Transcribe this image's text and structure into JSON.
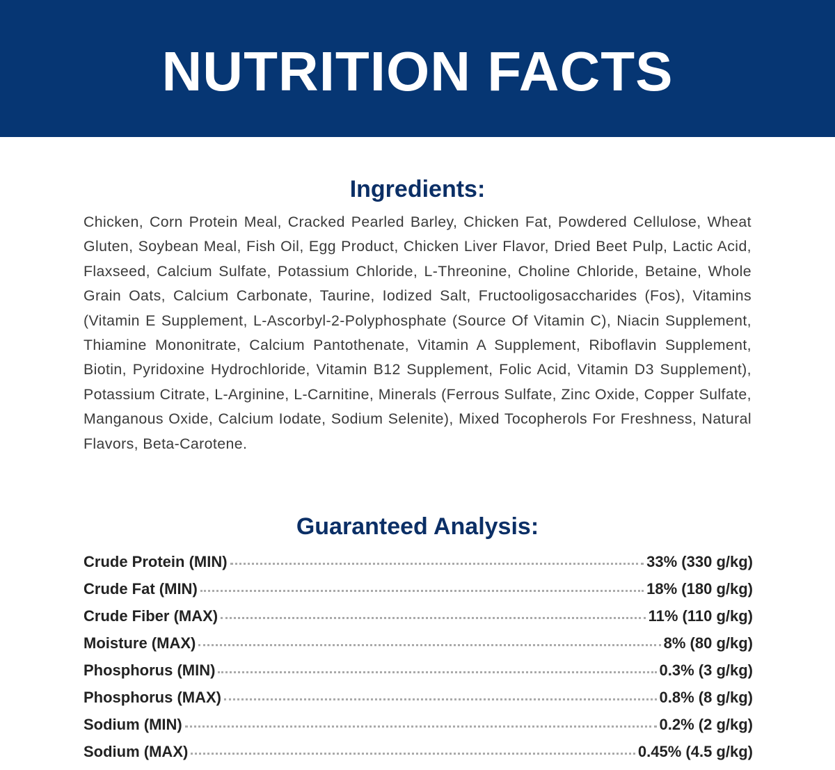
{
  "header": {
    "title": "NUTRITION FACTS"
  },
  "ingredients": {
    "heading": "Ingredients:",
    "text": "Chicken, Corn Protein Meal, Cracked Pearled Barley, Chicken Fat, Powdered Cellulose, Wheat Gluten, Soybean Meal, Fish Oil, Egg Product, Chicken Liver Flavor, Dried Beet Pulp, Lactic Acid, Flaxseed, Calcium Sulfate, Potassium Chloride, L-Threonine, Choline Chloride, Betaine, Whole Grain Oats, Calcium Carbonate, Taurine, Iodized Salt, Fructooligosaccharides (Fos), Vitamins (Vitamin E Supplement, L-Ascorbyl-2-Polyphosphate (Source Of Vitamin C), Niacin Supplement, Thiamine Mononitrate, Calcium Pantothenate, Vitamin A Supplement, Riboflavin Supplement, Biotin, Pyridoxine Hydrochloride, Vitamin B12 Supplement, Folic Acid, Vitamin D3 Supplement), Potassium Citrate, L-Arginine, L-Carnitine, Minerals (Ferrous Sulfate, Zinc Oxide, Copper Sulfate, Manganous Oxide, Calcium Iodate, Sodium Selenite), Mixed Tocopherols For Freshness, Natural Flavors, Beta-Carotene."
  },
  "analysis": {
    "heading": "Guaranteed Analysis:",
    "rows": [
      [
        "Crude Protein (MIN)",
        "33% (330 g/kg)"
      ],
      [
        "Crude Fat (MIN)",
        "18% (180 g/kg)"
      ],
      [
        "Crude Fiber (MAX)",
        "11% (110 g/kg)"
      ],
      [
        "Moisture (MAX)",
        "8% (80 g/kg)"
      ],
      [
        "Phosphorus (MIN)",
        "0.3% (3 g/kg)"
      ],
      [
        "Phosphorus (MAX)",
        "0.8% (8 g/kg)"
      ],
      [
        "Sodium (MIN)",
        "0.2% (2 g/kg)"
      ],
      [
        "Sodium (MAX)",
        "0.45% (4.5 g/kg)"
      ]
    ]
  }
}
